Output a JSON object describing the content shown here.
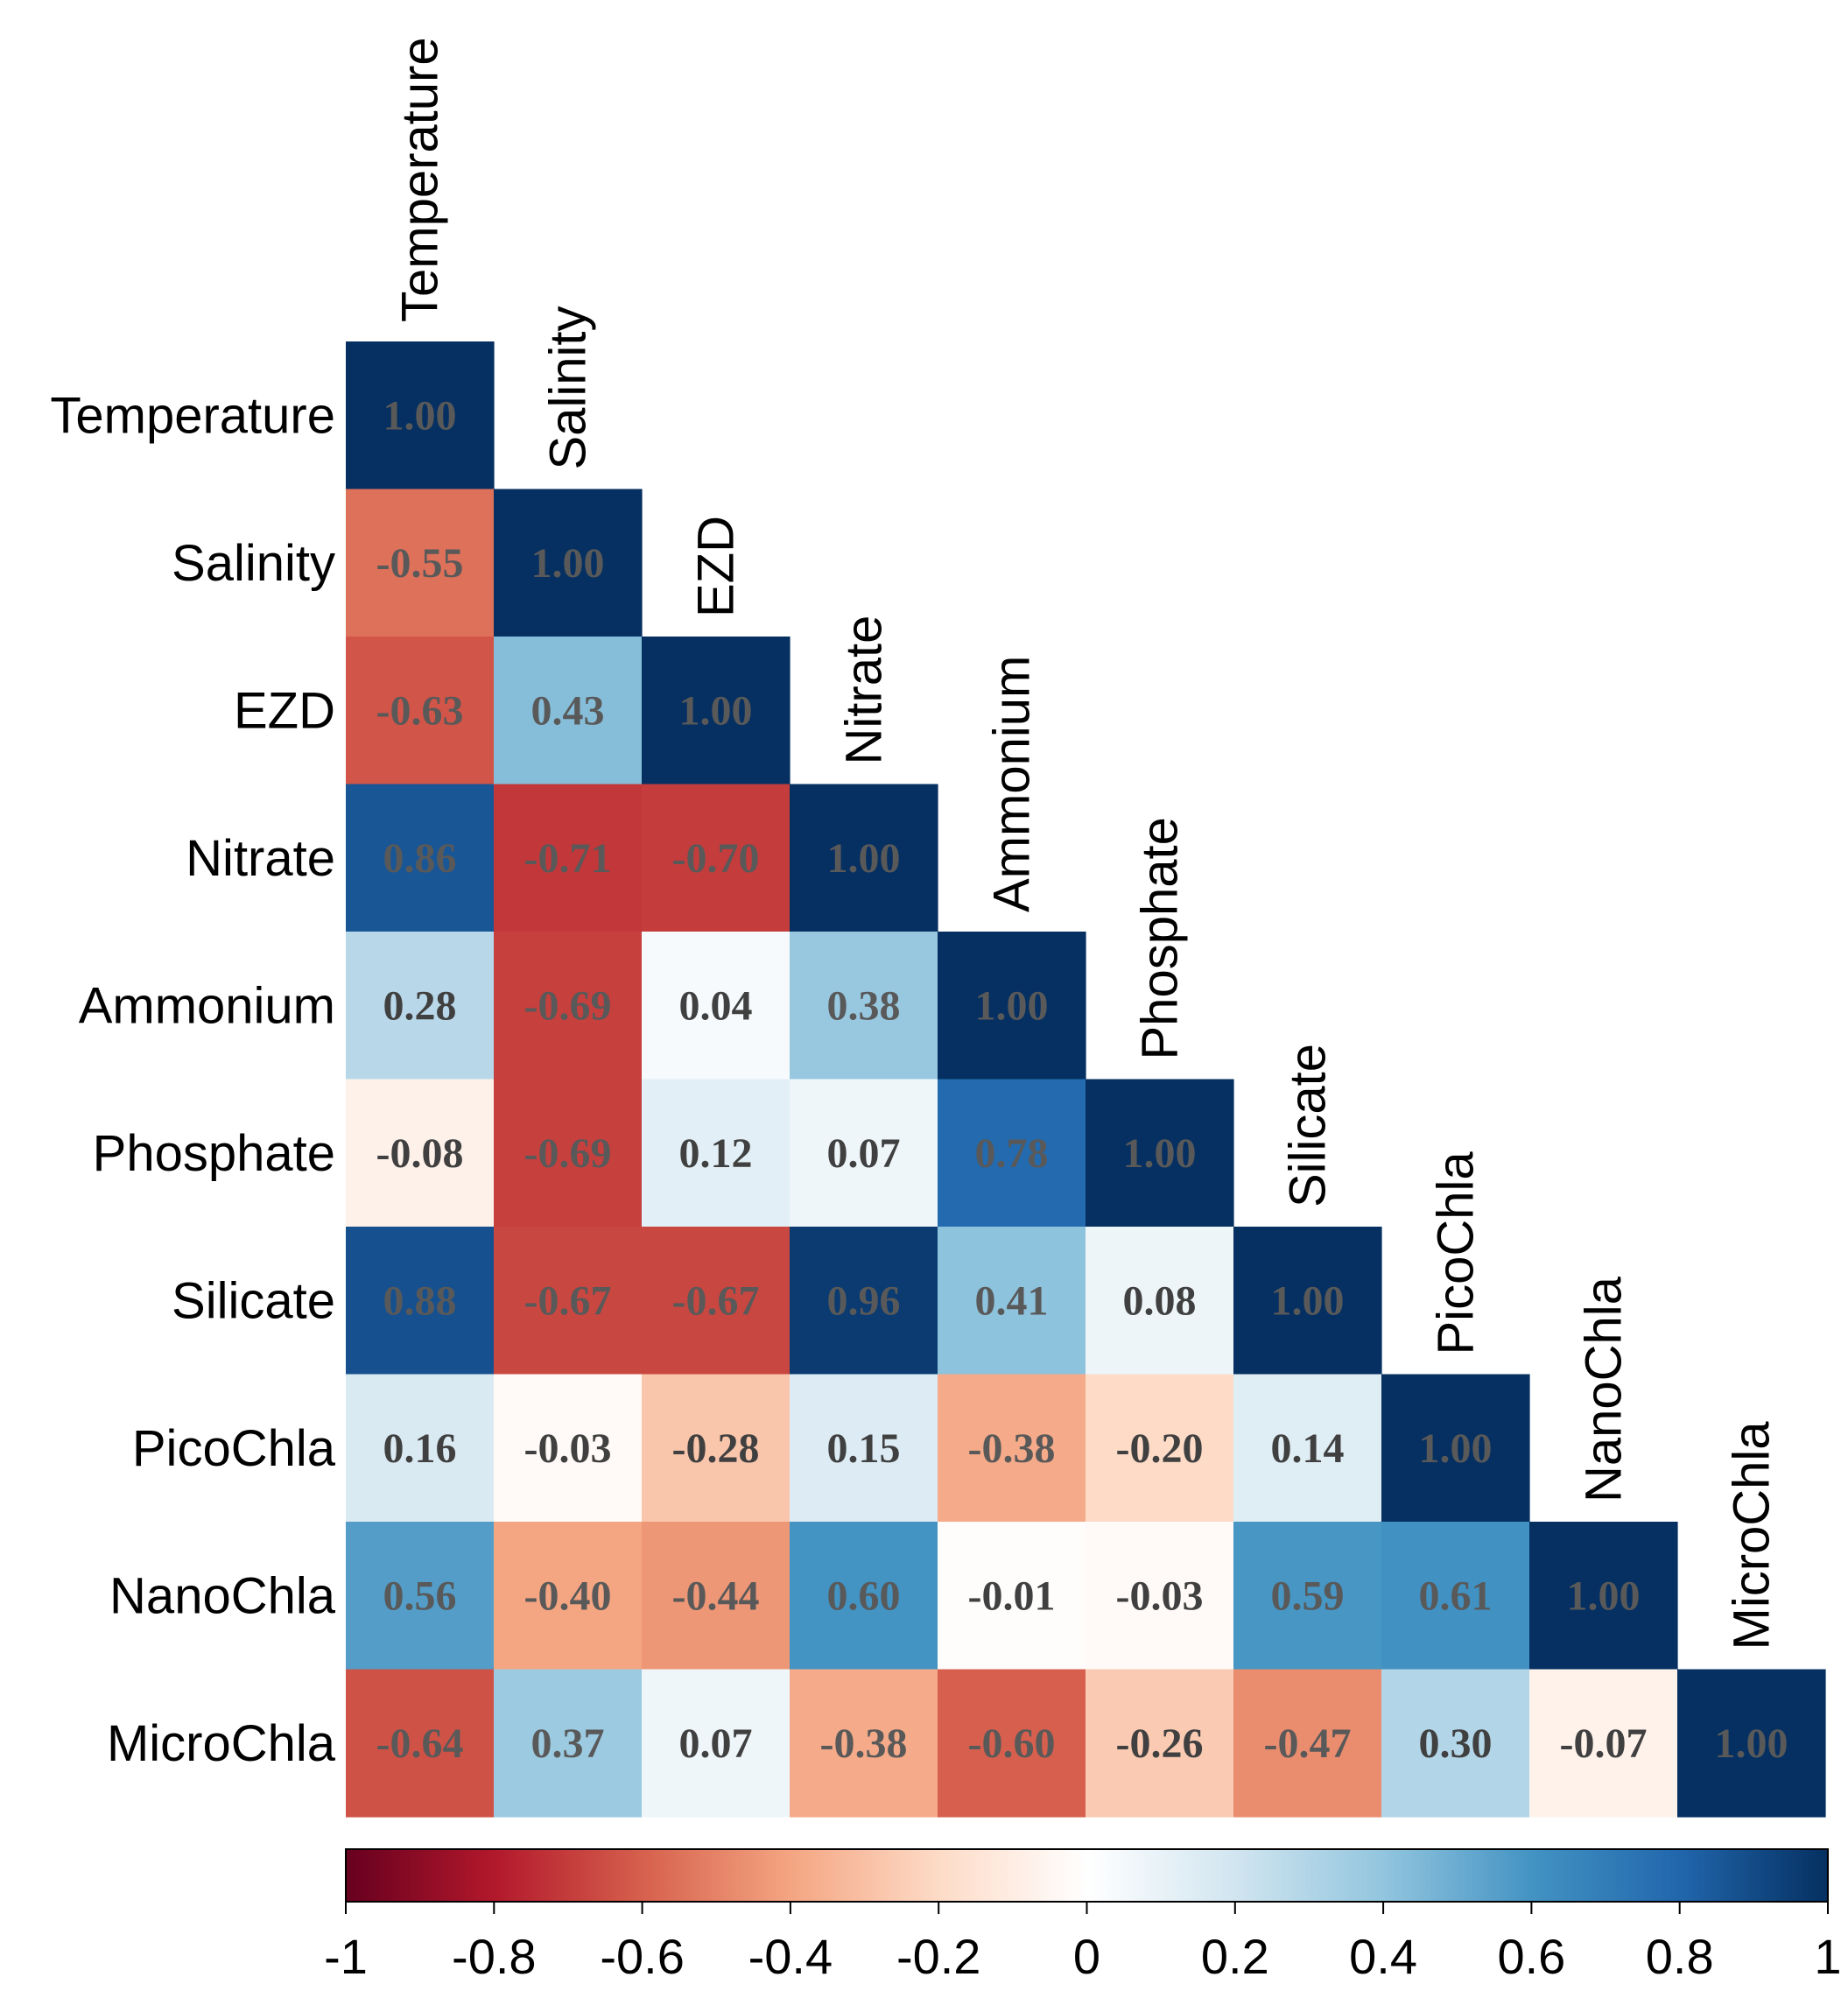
{
  "chart_data": {
    "type": "heatmap",
    "title": "",
    "variables": [
      "Temperature",
      "Salinity",
      "EZD",
      "Nitrate",
      "Ammonium",
      "Phosphate",
      "Silicate",
      "PicoChla",
      "NanoChla",
      "MicroChla"
    ],
    "matrix_lower": [
      [
        "1.00"
      ],
      [
        "-0.55",
        "1.00"
      ],
      [
        "-0.63",
        "0.43",
        "1.00"
      ],
      [
        "0.86",
        "-0.71",
        "-0.70",
        "1.00"
      ],
      [
        "0.28",
        "-0.69",
        "0.04",
        "0.38",
        "1.00"
      ],
      [
        "-0.08",
        "-0.69",
        "0.12",
        "0.07",
        "0.78",
        "1.00"
      ],
      [
        "0.88",
        "-0.67",
        "-0.67",
        "0.96",
        "0.41",
        "0.08",
        "1.00"
      ],
      [
        "0.16",
        "-0.03",
        "-0.28",
        "0.15",
        "-0.38",
        "-0.20",
        "0.14",
        "1.00"
      ],
      [
        "0.56",
        "-0.40",
        "-0.44",
        "0.60",
        "-0.01",
        "-0.03",
        "0.59",
        "0.61",
        "1.00"
      ],
      [
        "-0.64",
        "0.37",
        "0.07",
        "-0.38",
        "-0.60",
        "-0.26",
        "-0.47",
        "0.30",
        "-0.07",
        "1.00"
      ]
    ],
    "color_scale": {
      "range": [
        -1,
        1
      ],
      "ticks": [
        "-1",
        "-0.8",
        "-0.6",
        "-0.4",
        "-0.2",
        "0",
        "0.2",
        "0.4",
        "0.6",
        "0.8",
        "1"
      ],
      "stops": [
        "#67001f",
        "#b2182b",
        "#d6604d",
        "#f4a582",
        "#fddbc7",
        "#ffffff",
        "#d1e5f0",
        "#92c5de",
        "#4393c3",
        "#2166ac",
        "#053061"
      ]
    },
    "legend_position": "bottom"
  },
  "colors": {
    "text_on_cell": "#595959",
    "text_on_light": "#404040",
    "border": "#000000"
  }
}
